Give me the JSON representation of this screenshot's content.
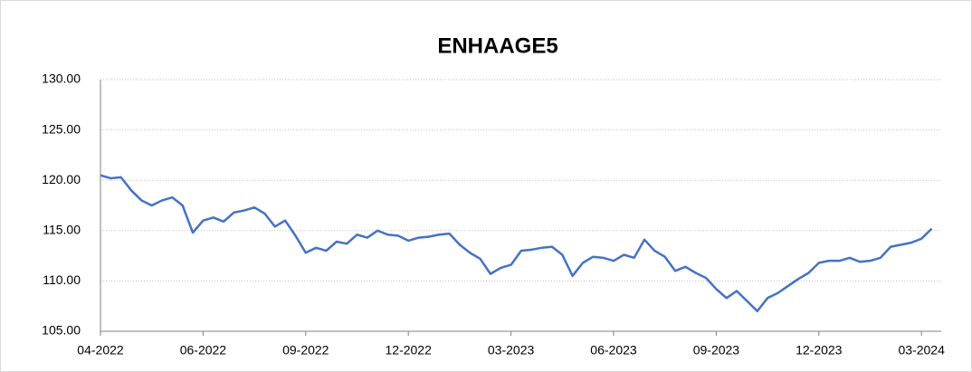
{
  "chart_data": {
    "type": "line",
    "title": "ENHAAGE5",
    "categories": [
      "04-2022",
      null,
      null,
      null,
      null,
      null,
      null,
      null,
      null,
      null,
      "06-2022",
      null,
      null,
      null,
      null,
      null,
      null,
      null,
      null,
      null,
      "09-2022",
      null,
      null,
      null,
      null,
      null,
      null,
      null,
      null,
      null,
      "12-2022",
      null,
      null,
      null,
      null,
      null,
      null,
      null,
      null,
      null,
      "03-2023",
      null,
      null,
      null,
      null,
      null,
      null,
      null,
      null,
      null,
      "06-2023",
      null,
      null,
      null,
      null,
      null,
      null,
      null,
      null,
      null,
      "09-2023",
      null,
      null,
      null,
      null,
      null,
      null,
      null,
      null,
      null,
      "12-2023",
      null,
      null,
      null,
      null,
      null,
      null,
      null,
      null,
      null,
      "03-2024",
      null
    ],
    "series": [
      {
        "name": "ENHAAGE5",
        "color": "#4472c4",
        "values": [
          120.5,
          120.2,
          120.3,
          119.0,
          118.0,
          117.5,
          118.0,
          118.3,
          117.5,
          114.8,
          116.0,
          116.3,
          115.9,
          116.8,
          117.0,
          117.3,
          116.7,
          115.4,
          116.0,
          114.5,
          112.8,
          113.3,
          113.0,
          113.9,
          113.7,
          114.6,
          114.3,
          115.0,
          114.6,
          114.5,
          114.0,
          114.3,
          114.4,
          114.6,
          114.7,
          113.6,
          112.8,
          112.2,
          110.7,
          111.3,
          111.6,
          113.0,
          113.1,
          113.3,
          113.4,
          112.6,
          110.5,
          111.8,
          112.4,
          112.3,
          112.0,
          112.6,
          112.3,
          114.1,
          113.0,
          112.4,
          111.0,
          111.4,
          110.8,
          110.3,
          109.2,
          108.3,
          109.0,
          108.0,
          107.0,
          108.3,
          108.8,
          109.5,
          110.2,
          110.8,
          111.8,
          112.0,
          112.0,
          112.3,
          111.9,
          112.0,
          112.3,
          113.4,
          113.6,
          113.8,
          114.2,
          115.2
        ]
      }
    ],
    "ylim": [
      105,
      130
    ],
    "yticks": [
      {
        "value": 105,
        "label": "105.00"
      },
      {
        "value": 110,
        "label": "110.00"
      },
      {
        "value": 115,
        "label": "115.00"
      },
      {
        "value": 120,
        "label": "120.00"
      },
      {
        "value": 125,
        "label": "125.00"
      },
      {
        "value": 130,
        "label": "130.00"
      }
    ],
    "grid": true
  }
}
